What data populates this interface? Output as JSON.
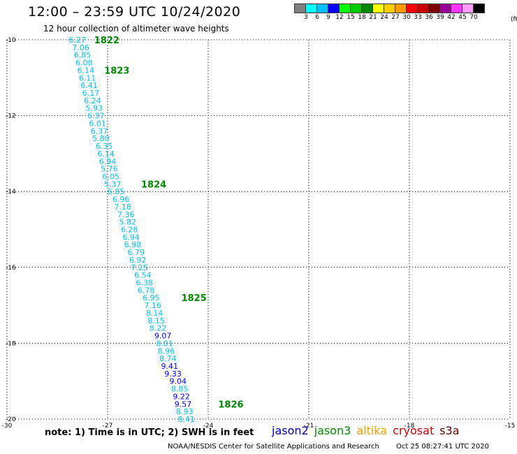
{
  "header": {
    "title": "12:00 – 23:59 UTC 10/24/2020",
    "subtitle": "12 hour collection of altimeter wave heights"
  },
  "color_scale": {
    "unit": "(ft)",
    "labels": [
      "3",
      "6",
      "9",
      "12",
      "15",
      "18",
      "21",
      "24",
      "27",
      "30",
      "33",
      "36",
      "39",
      "42",
      "45",
      "70"
    ],
    "colors": [
      "#808080",
      "#00ffff",
      "#00bfff",
      "#0000ff",
      "#00ff00",
      "#00cc00",
      "#008800",
      "#ffff00",
      "#ffcc00",
      "#ff9900",
      "#ff0000",
      "#cc0000",
      "#800000",
      "#990099",
      "#ff33ff",
      "#ff99ff",
      "#000000"
    ]
  },
  "note": "note: 1) Time is in UTC; 2) SWH is in feet",
  "legend": [
    {
      "name": "jason2",
      "color": "#0000cc"
    },
    {
      "name": "jason3",
      "color": "#008800"
    },
    {
      "name": "altika",
      "color": "#ff9900"
    },
    {
      "name": "cryosat",
      "color": "#cc0000"
    },
    {
      "name": "s3a",
      "color": "#660000"
    }
  ],
  "footer": {
    "credit": "NOAA/NESDIS Center for Satellite Applications and Research",
    "timestamp": "Oct 25 08:27:41 UTC 2020"
  },
  "chart_data": {
    "type": "scatter",
    "x_ticks": [
      "-30",
      "-27",
      "-24",
      "-21",
      "-18",
      "-15"
    ],
    "y_ticks": [
      "-10",
      "-12",
      "-14",
      "-16",
      "-18",
      "-20"
    ],
    "xlim": [
      -30,
      -15
    ],
    "ylim": [
      -20,
      -10
    ],
    "grid": true,
    "points": [
      {
        "x": -27.9,
        "y": -10.0,
        "v": "6.27",
        "c": "#00bfff"
      },
      {
        "x": -27.8,
        "y": -10.2,
        "v": "7.06",
        "c": "#00bfff"
      },
      {
        "x": -27.75,
        "y": -10.4,
        "v": "6.85",
        "c": "#00bfff"
      },
      {
        "x": -27.7,
        "y": -10.6,
        "v": "6.08",
        "c": "#00bfff"
      },
      {
        "x": -27.65,
        "y": -10.8,
        "v": "6.14",
        "c": "#00bfff"
      },
      {
        "x": -27.6,
        "y": -11.0,
        "v": "6.11",
        "c": "#00bfff"
      },
      {
        "x": -27.55,
        "y": -11.2,
        "v": "6.41",
        "c": "#00bfff"
      },
      {
        "x": -27.5,
        "y": -11.4,
        "v": "6.17",
        "c": "#00bfff"
      },
      {
        "x": -27.45,
        "y": -11.6,
        "v": "6.24",
        "c": "#00bfff"
      },
      {
        "x": -27.4,
        "y": -11.8,
        "v": "5.93",
        "c": "#00bfff"
      },
      {
        "x": -27.35,
        "y": -12.0,
        "v": "6.37",
        "c": "#00bfff"
      },
      {
        "x": -27.3,
        "y": -12.2,
        "v": "6.01",
        "c": "#00bfff"
      },
      {
        "x": -27.25,
        "y": -12.4,
        "v": "6.37",
        "c": "#00bfff"
      },
      {
        "x": -27.2,
        "y": -12.6,
        "v": "5.80",
        "c": "#00bfff"
      },
      {
        "x": -27.1,
        "y": -12.8,
        "v": "6.35",
        "c": "#00bfff"
      },
      {
        "x": -27.05,
        "y": -13.0,
        "v": "6.14",
        "c": "#00bfff"
      },
      {
        "x": -27.0,
        "y": -13.2,
        "v": "6.94",
        "c": "#00bfff"
      },
      {
        "x": -26.95,
        "y": -13.4,
        "v": "5.76",
        "c": "#00bfff"
      },
      {
        "x": -26.9,
        "y": -13.6,
        "v": "6.05",
        "c": "#00bfff"
      },
      {
        "x": -26.85,
        "y": -13.8,
        "v": "5.37",
        "c": "#00bfff"
      },
      {
        "x": -26.75,
        "y": -14.0,
        "v": "6.85",
        "c": "#00bfff"
      },
      {
        "x": -26.6,
        "y": -14.2,
        "v": "6.96",
        "c": "#00bfff"
      },
      {
        "x": -26.55,
        "y": -14.4,
        "v": "7.18",
        "c": "#00bfff"
      },
      {
        "x": -26.45,
        "y": -14.6,
        "v": "7.36",
        "c": "#00bfff"
      },
      {
        "x": -26.4,
        "y": -14.8,
        "v": "5.82",
        "c": "#00bfff"
      },
      {
        "x": -26.35,
        "y": -15.0,
        "v": "6.28",
        "c": "#00bfff"
      },
      {
        "x": -26.3,
        "y": -15.2,
        "v": "6.94",
        "c": "#00bfff"
      },
      {
        "x": -26.25,
        "y": -15.4,
        "v": "6.98",
        "c": "#00bfff"
      },
      {
        "x": -26.15,
        "y": -15.6,
        "v": "6.79",
        "c": "#00bfff"
      },
      {
        "x": -26.1,
        "y": -15.8,
        "v": "6.92",
        "c": "#00bfff"
      },
      {
        "x": -26.05,
        "y": -16.0,
        "v": "7.25",
        "c": "#00bfff"
      },
      {
        "x": -25.95,
        "y": -16.2,
        "v": "6.54",
        "c": "#00bfff"
      },
      {
        "x": -25.9,
        "y": -16.4,
        "v": "6.38",
        "c": "#00bfff"
      },
      {
        "x": -25.85,
        "y": -16.6,
        "v": "6.78",
        "c": "#00bfff"
      },
      {
        "x": -25.7,
        "y": -16.8,
        "v": "6.95",
        "c": "#00bfff"
      },
      {
        "x": -25.65,
        "y": -17.0,
        "v": "7.16",
        "c": "#00bfff"
      },
      {
        "x": -25.6,
        "y": -17.2,
        "v": "8.14",
        "c": "#00bfff"
      },
      {
        "x": -25.55,
        "y": -17.4,
        "v": "8.15",
        "c": "#00bfff"
      },
      {
        "x": -25.5,
        "y": -17.6,
        "v": "8.22",
        "c": "#00bfff"
      },
      {
        "x": -25.35,
        "y": -17.8,
        "v": "9.07",
        "c": "#0000ff"
      },
      {
        "x": -25.3,
        "y": -18.0,
        "v": "8.01",
        "c": "#00bfff"
      },
      {
        "x": -25.25,
        "y": -18.2,
        "v": "8.96",
        "c": "#00bfff"
      },
      {
        "x": -25.2,
        "y": -18.4,
        "v": "8.74",
        "c": "#00bfff"
      },
      {
        "x": -25.15,
        "y": -18.6,
        "v": "9.41",
        "c": "#0000ff"
      },
      {
        "x": -25.05,
        "y": -18.8,
        "v": "9.33",
        "c": "#0000ff"
      },
      {
        "x": -24.9,
        "y": -19.0,
        "v": "9.04",
        "c": "#0000ff"
      },
      {
        "x": -24.85,
        "y": -19.2,
        "v": "8.85",
        "c": "#00bfff"
      },
      {
        "x": -24.8,
        "y": -19.4,
        "v": "9.22",
        "c": "#0000ff"
      },
      {
        "x": -24.75,
        "y": -19.6,
        "v": "9.57",
        "c": "#0000ff"
      },
      {
        "x": -24.7,
        "y": -19.8,
        "v": "8.93",
        "c": "#00bfff"
      },
      {
        "x": -24.65,
        "y": -20.0,
        "v": "8.41",
        "c": "#00bfff"
      }
    ],
    "annotations": [
      {
        "text": "1822",
        "x": -27.4,
        "y": -10.0
      },
      {
        "text": "1823",
        "x": -27.1,
        "y": -10.8
      },
      {
        "text": "1824",
        "x": -26.0,
        "y": -13.8
      },
      {
        "text": "1825",
        "x": -24.8,
        "y": -16.8
      },
      {
        "text": "1826",
        "x": -23.7,
        "y": -19.6
      }
    ],
    "annotation_color": "#008800"
  }
}
